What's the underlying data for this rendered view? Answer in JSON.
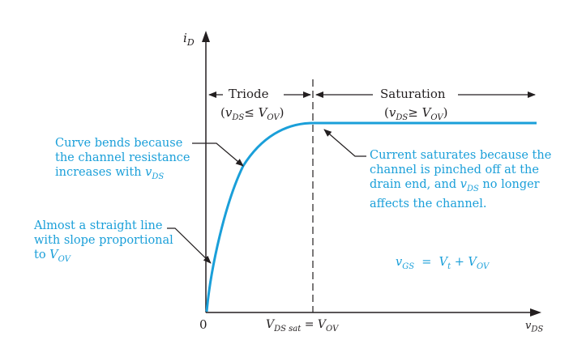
{
  "axes": {
    "y_label": "iD",
    "x_label": "vDS",
    "origin_label": "0",
    "x_mark_label": "VDS sat = VOV"
  },
  "regions": {
    "triode": {
      "name": "Triode",
      "condition": "(vDS ≤ VOV)"
    },
    "saturation": {
      "name": "Saturation",
      "condition": "(vDS ≥ VOV)"
    }
  },
  "annotations": {
    "curve_bends": [
      "Curve bends because",
      "the channel resistance",
      "increases with vDS"
    ],
    "straight_line": [
      "Almost a straight line",
      "with slope proportional",
      "to VOV"
    ],
    "saturates": [
      "Current saturates because the",
      "channel is pinched off at the",
      "drain end, and vDS no longer",
      "affects the channel."
    ],
    "vgs_eq": "vGS = Vt + VOV"
  },
  "colors": {
    "curve": "#1a9fd9",
    "text_annotation": "#1a9fd9",
    "axes": "#231f20"
  }
}
